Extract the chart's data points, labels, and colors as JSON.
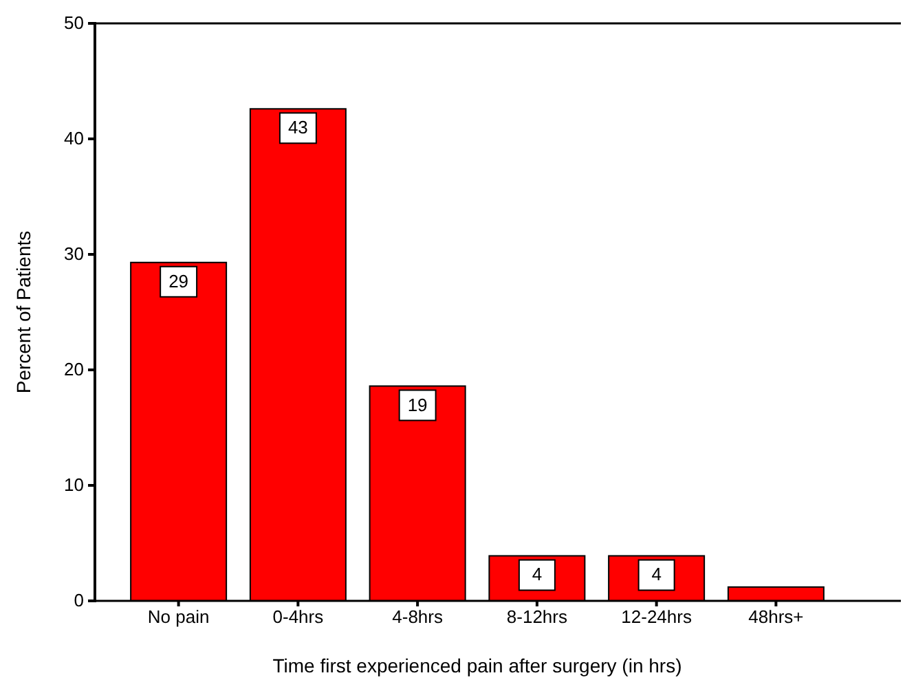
{
  "chart_data": {
    "type": "bar",
    "xlabel": "Time first experienced pain after surgery (in hrs)",
    "ylabel": "Percent of Patients",
    "categories": [
      "No pain",
      "0-4hrs",
      "4-8hrs",
      "8-12hrs",
      "12-24hrs",
      "48hrs+"
    ],
    "values": [
      29.3,
      42.6,
      18.6,
      3.9,
      3.9,
      1.2
    ],
    "value_labels": [
      "29",
      "43",
      "19",
      "4",
      "4",
      null
    ],
    "color": "#ff0000",
    "ylim": [
      0,
      50
    ],
    "yticks": [
      0,
      10,
      20,
      30,
      40,
      50
    ],
    "grid": false
  }
}
